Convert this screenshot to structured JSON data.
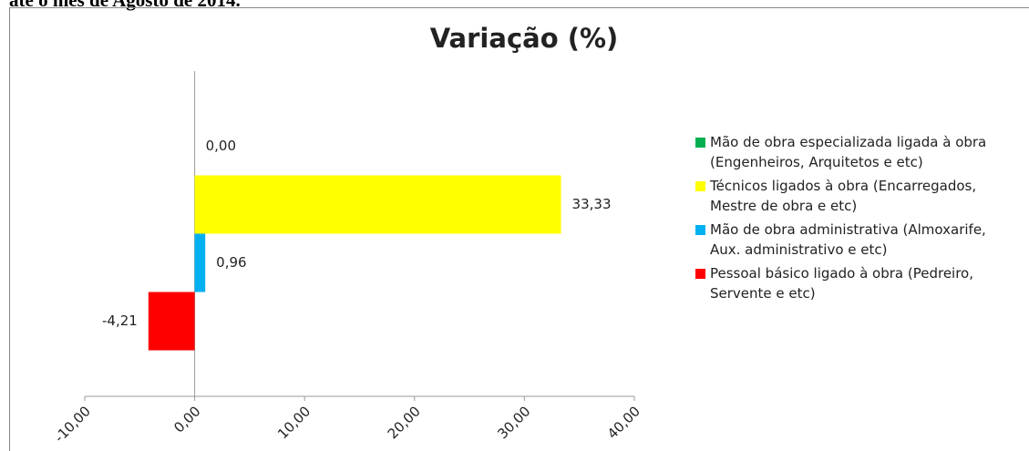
{
  "caption": "até o mês de Agosto de 2014.",
  "chart_data": {
    "type": "bar",
    "orientation": "horizontal",
    "title": "Variação (%)",
    "series": [
      {
        "name": "Mão de obra especializada ligada à obra (Engenheiros, Arquitetos e etc)",
        "color": "#00b050",
        "values": [
          0
        ],
        "value_labels": [
          "0,00"
        ]
      },
      {
        "name": "Técnicos ligados à obra (Encarregados, Mestre de obra e etc)",
        "color": "#ffff00",
        "values": [
          33.33
        ],
        "value_labels": [
          "33,33"
        ]
      },
      {
        "name": "Mão de obra administrativa (Almoxarife, Aux. administrativo e etc)",
        "color": "#00b0f0",
        "values": [
          0.96
        ],
        "value_labels": [
          "0,96"
        ]
      },
      {
        "name": "Pessoal básico ligado à obra (Pedreiro, Servente e etc)",
        "color": "#ff0000",
        "values": [
          -4.21
        ],
        "value_labels": [
          "-4,21"
        ]
      }
    ],
    "xlim": [
      -10,
      40
    ],
    "xticks": [
      {
        "value": -10,
        "label": "-10,00"
      },
      {
        "value": 0,
        "label": "0,00"
      },
      {
        "value": 10,
        "label": "10,00"
      },
      {
        "value": 20,
        "label": "20,00"
      },
      {
        "value": 30,
        "label": "30,00"
      },
      {
        "value": 40,
        "label": "40,00"
      }
    ]
  }
}
